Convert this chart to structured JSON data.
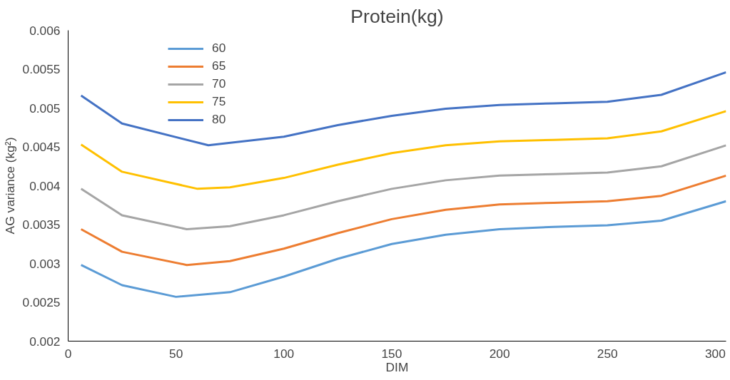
{
  "chart_data": {
    "type": "line",
    "title": "Protein(kg)",
    "xlabel": "DIM",
    "ylabel": "AG variance (kg²)",
    "xlim": [
      0,
      305
    ],
    "ylim": [
      0.002,
      0.006
    ],
    "xticks": [
      0,
      50,
      100,
      150,
      200,
      250,
      300
    ],
    "yticks": [
      0.002,
      0.0025,
      0.003,
      0.0035,
      0.004,
      0.0045,
      0.005,
      0.0055,
      0.006
    ],
    "grid": false,
    "legend": "top left",
    "marker": "none",
    "line_style": "solid",
    "series": [
      {
        "name": "60",
        "color": "#5b9bd5",
        "x": [
          6,
          25,
          50,
          75,
          100,
          125,
          150,
          175,
          200,
          225,
          250,
          275,
          305
        ],
        "values": [
          0.00298,
          0.00272,
          0.00257,
          0.00263,
          0.00283,
          0.00306,
          0.00325,
          0.00337,
          0.00344,
          0.00347,
          0.00349,
          0.00355,
          0.0038
        ]
      },
      {
        "name": "65",
        "color": "#ed7d31",
        "x": [
          6,
          25,
          55,
          75,
          100,
          125,
          150,
          175,
          200,
          225,
          250,
          275,
          305
        ],
        "values": [
          0.00344,
          0.00315,
          0.00298,
          0.00303,
          0.00319,
          0.00339,
          0.00357,
          0.00369,
          0.00376,
          0.00378,
          0.0038,
          0.00387,
          0.00413
        ]
      },
      {
        "name": "70",
        "color": "#a5a5a5",
        "x": [
          6,
          25,
          55,
          75,
          100,
          125,
          150,
          175,
          200,
          225,
          250,
          275,
          305
        ],
        "values": [
          0.00396,
          0.00362,
          0.00344,
          0.00348,
          0.00362,
          0.0038,
          0.00396,
          0.00407,
          0.00413,
          0.00415,
          0.00417,
          0.00425,
          0.00452
        ]
      },
      {
        "name": "75",
        "color": "#ffc000",
        "x": [
          6,
          25,
          60,
          75,
          100,
          125,
          150,
          175,
          200,
          225,
          250,
          275,
          305
        ],
        "values": [
          0.00453,
          0.00418,
          0.00396,
          0.00398,
          0.0041,
          0.00427,
          0.00442,
          0.00452,
          0.00457,
          0.00459,
          0.00461,
          0.0047,
          0.00496
        ]
      },
      {
        "name": "80",
        "color": "#4472c4",
        "x": [
          6,
          25,
          65,
          100,
          125,
          150,
          175,
          200,
          225,
          250,
          275,
          305
        ],
        "values": [
          0.00516,
          0.0048,
          0.00452,
          0.00463,
          0.00478,
          0.0049,
          0.00499,
          0.00504,
          0.00506,
          0.00508,
          0.00517,
          0.00546
        ]
      }
    ]
  }
}
